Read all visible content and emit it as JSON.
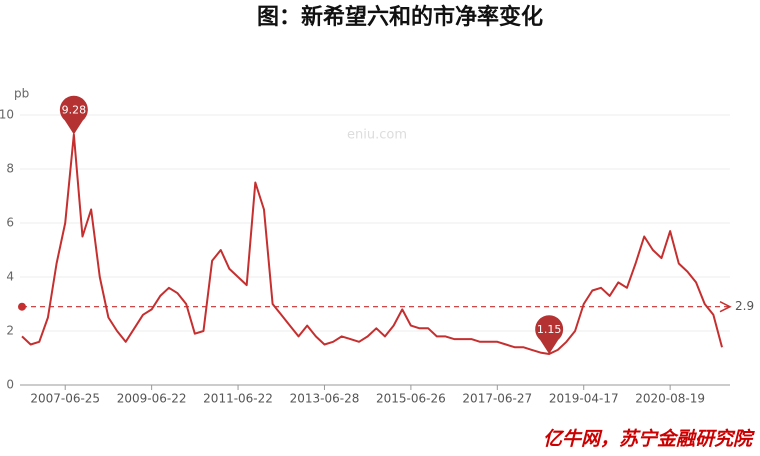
{
  "chart_data": {
    "type": "line",
    "title": "图：新希望六和的市净率变化",
    "y_label": "pb",
    "watermark": "eniu.com",
    "source": "亿牛网，苏宁金融研究院",
    "categories": [
      null,
      null,
      null,
      null,
      null,
      "2007-06-25",
      null,
      null,
      null,
      null,
      null,
      null,
      null,
      null,
      null,
      "2009-06-22",
      null,
      null,
      null,
      null,
      null,
      null,
      null,
      null,
      null,
      "2011-06-22",
      null,
      null,
      null,
      null,
      null,
      null,
      null,
      null,
      null,
      "2013-06-28",
      null,
      null,
      null,
      null,
      null,
      null,
      null,
      null,
      null,
      "2015-06-26",
      null,
      null,
      null,
      null,
      null,
      null,
      null,
      null,
      null,
      "2017-06-27",
      null,
      null,
      null,
      null,
      null,
      null,
      null,
      null,
      null,
      "2019-04-17",
      null,
      null,
      null,
      null,
      null,
      null,
      null,
      null,
      null,
      "2020-08-19",
      null,
      null,
      null,
      null,
      null,
      null
    ],
    "series": [
      {
        "color": "#c62f2f",
        "values": [
          1.8,
          1.5,
          1.6,
          2.5,
          4.5,
          6.0,
          9.28,
          5.5,
          6.5,
          4.0,
          2.5,
          2.0,
          1.6,
          2.1,
          2.6,
          2.8,
          3.3,
          3.6,
          3.4,
          3.0,
          1.9,
          2.0,
          4.6,
          5.0,
          4.3,
          4.0,
          3.7,
          7.5,
          6.5,
          3.0,
          2.6,
          2.2,
          1.8,
          2.2,
          1.8,
          1.5,
          1.6,
          1.8,
          1.7,
          1.6,
          1.8,
          2.1,
          1.8,
          2.2,
          2.8,
          2.2,
          2.1,
          2.1,
          1.8,
          1.8,
          1.7,
          1.7,
          1.7,
          1.6,
          1.6,
          1.6,
          1.5,
          1.4,
          1.4,
          1.3,
          1.2,
          1.15,
          1.3,
          1.6,
          2.0,
          3.0,
          3.5,
          3.6,
          3.3,
          3.8,
          3.6,
          4.5,
          5.5,
          5.0,
          4.7,
          5.7,
          4.5,
          4.2,
          3.8,
          3.0,
          2.6,
          1.4
        ]
      }
    ],
    "reference_line": 2.9,
    "ylim": [
      0,
      10
    ],
    "yticks": [
      0,
      2,
      4,
      6,
      8,
      10
    ],
    "grid": true
  }
}
